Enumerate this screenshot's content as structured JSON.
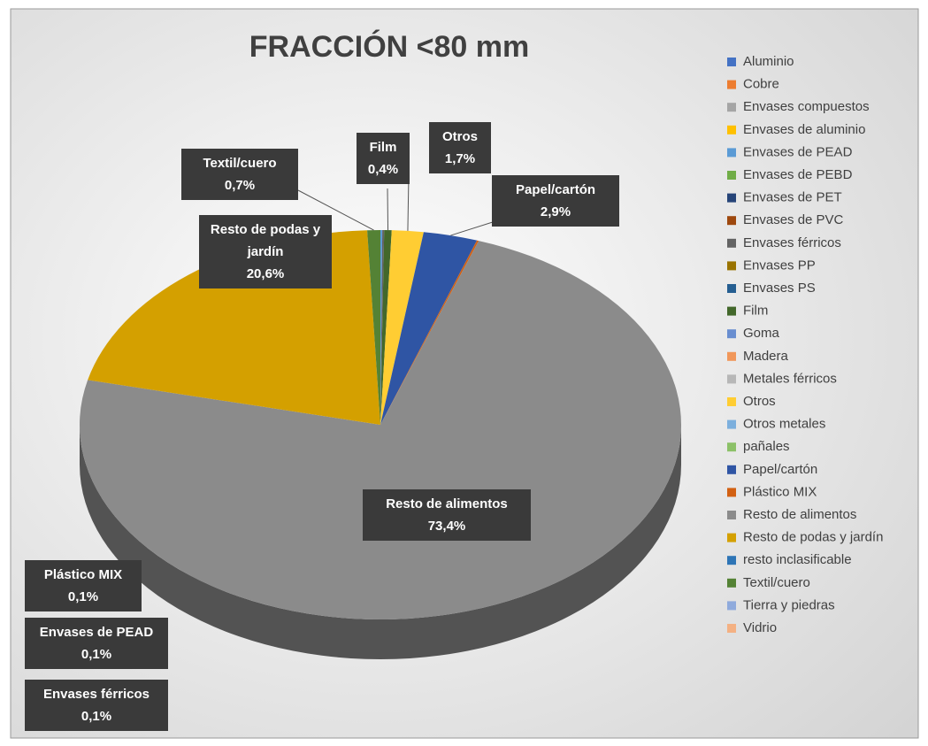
{
  "chart_data": {
    "type": "pie",
    "title": "FRACCIÓN <80 mm",
    "categories": [
      "Aluminio",
      "Cobre",
      "Envases compuestos",
      "Envases de aluminio",
      "Envases de PEAD",
      "Envases de PEBD",
      "Envases de PET",
      "Envases de PVC",
      "Envases férricos",
      "Envases PP",
      "Envases PS",
      "Film",
      "Goma",
      "Madera",
      "Metales férricos",
      "Otros",
      "Otros metales",
      "pañales",
      "Papel/cartón",
      "Plástico MIX",
      "Resto de alimentos",
      "Resto de podas y jardín",
      "resto inclasificable",
      "Textil/cuero",
      "Tierra y piedras",
      "Vidrio"
    ],
    "values": [
      0,
      0,
      0,
      0,
      0.1,
      0,
      0,
      0,
      0.1,
      0,
      0,
      0.4,
      0,
      0,
      0,
      1.7,
      0,
      0,
      2.9,
      0.1,
      73.4,
      20.6,
      0,
      0.7,
      0,
      0
    ],
    "value_labels": [
      null,
      null,
      null,
      null,
      "0,1%",
      null,
      null,
      null,
      "0,1%",
      null,
      null,
      "0,4%",
      null,
      null,
      null,
      "1,7%",
      null,
      null,
      "2,9%",
      "0,1%",
      "73,4%",
      "20,6%",
      null,
      "0,7%",
      null,
      null
    ],
    "colors": [
      "#4472c4",
      "#ed7d31",
      "#a5a5a5",
      "#ffc000",
      "#5b9bd5",
      "#70ad47",
      "#264478",
      "#9e480e",
      "#636363",
      "#997300",
      "#255e91",
      "#43682b",
      "#698ed0",
      "#f1975a",
      "#b7b7b7",
      "#ffcd33",
      "#7cafdd",
      "#8cc168",
      "#2f55a4",
      "#d26012",
      "#8b8b8b",
      "#d4a000",
      "#2e75b6",
      "#548235",
      "#8faadc",
      "#f4b183"
    ],
    "legend": "right"
  }
}
